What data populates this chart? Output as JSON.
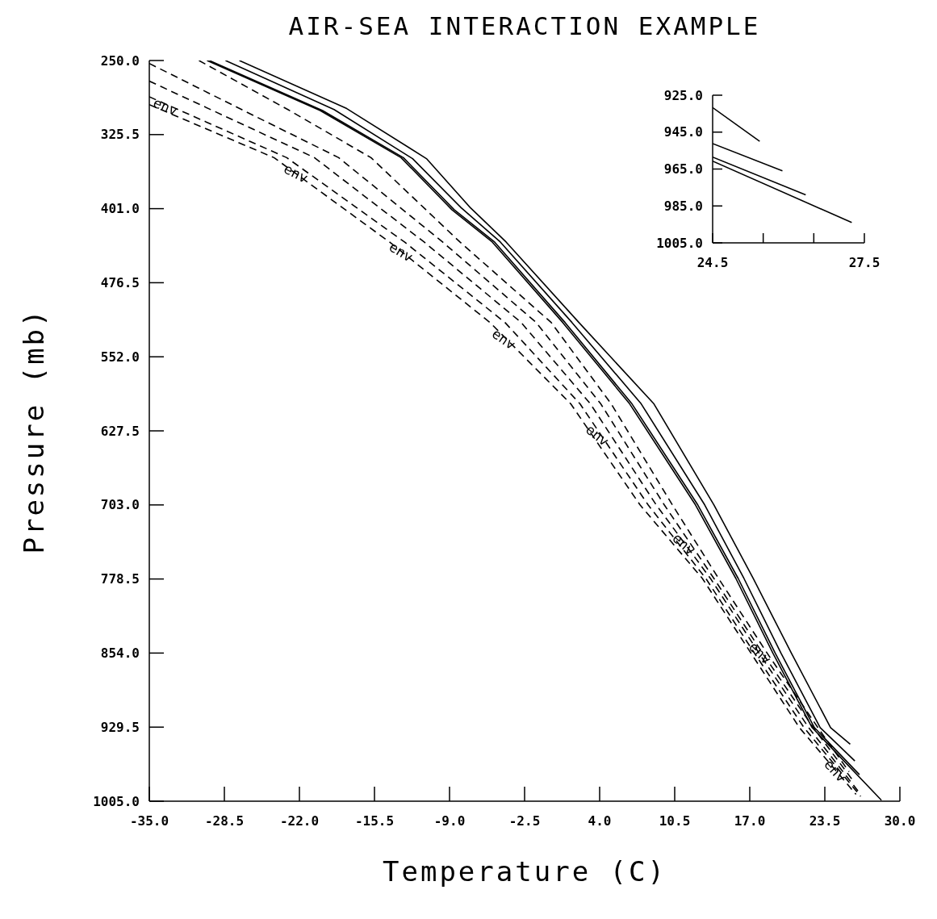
{
  "chart_data": [
    {
      "type": "line",
      "title": "AIR-SEA INTERACTION EXAMPLE",
      "xlabel": "Temperature (C)",
      "ylabel": "Pressure (mb)",
      "xlim": [
        -35,
        30
      ],
      "xticks": [
        {
          "value": -35,
          "label": "-35.0"
        },
        {
          "value": -28.5,
          "label": "-28.5"
        },
        {
          "value": -22,
          "label": "-22.0"
        },
        {
          "value": -15.5,
          "label": "-15.5"
        },
        {
          "value": -9,
          "label": "-9.0"
        },
        {
          "value": -2.5,
          "label": "-2.5"
        },
        {
          "value": 4,
          "label": "4.0"
        },
        {
          "value": 10.5,
          "label": "10.5"
        },
        {
          "value": 17,
          "label": "17.0"
        },
        {
          "value": 23.5,
          "label": "23.5"
        },
        {
          "value": 30,
          "label": "30.0"
        }
      ],
      "ylim": [
        1005,
        250
      ],
      "yticks": [
        {
          "value": 250,
          "label": "250.0"
        },
        {
          "value": 325.5,
          "label": "325.5"
        },
        {
          "value": 401,
          "label": "401.0"
        },
        {
          "value": 476.5,
          "label": "476.5"
        },
        {
          "value": 552,
          "label": "552.0"
        },
        {
          "value": 627.5,
          "label": "627.5"
        },
        {
          "value": 703,
          "label": "703.0"
        },
        {
          "value": 778.5,
          "label": "778.5"
        },
        {
          "value": 854,
          "label": "854.0"
        },
        {
          "value": 929.5,
          "label": "929.5"
        },
        {
          "value": 1005,
          "label": "1005.0"
        }
      ],
      "series": [
        {
          "color": "#000000",
          "line_style": "solid",
          "x": [
            -27.2,
            -17.9,
            -11,
            -7.2,
            -4.1,
            2.2,
            8.7,
            13.9,
            17.3,
            20.6,
            24,
            25.7
          ],
          "values": [
            250,
            299,
            350,
            400,
            435,
            517,
            600,
            703,
            778,
            854,
            930,
            947
          ]
        },
        {
          "color": "#000000",
          "line_style": "solid",
          "x": [
            -28.4,
            -19,
            -12.2,
            -8,
            -4.6,
            1.6,
            7.6,
            13.1,
            16.5,
            19.7,
            23.1,
            26.1
          ],
          "values": [
            250,
            300,
            350,
            400,
            435,
            517,
            600,
            703,
            778,
            854,
            930,
            964
          ]
        },
        {
          "color": "#000000",
          "line_style": "solid",
          "x": [
            -29.8,
            -20,
            -13,
            -8.6,
            -5.1,
            1,
            6.8,
            12.5,
            16,
            19.2,
            22.6,
            26.5
          ],
          "values": [
            250,
            301,
            349,
            402,
            435,
            517,
            600,
            703,
            778,
            854,
            930,
            978
          ]
        },
        {
          "color": "#000000",
          "line_style": "solid",
          "x": [
            -30,
            -20.2,
            -13.2,
            -8.8,
            -5.3,
            0.8,
            6.6,
            12.3,
            15.8,
            19,
            22.4,
            28.4
          ],
          "values": [
            250,
            301,
            349,
            402,
            435,
            517,
            600,
            703,
            778,
            854,
            930,
            1004
          ]
        },
        {
          "color": "#000000",
          "line_style": "dashed",
          "x": [
            -30.7,
            -23,
            -15.8,
            -8.1,
            -0.2,
            5,
            10.3,
            14.3,
            18.5,
            22.9,
            25.6
          ],
          "values": [
            250,
            300,
            349,
            435,
            517,
            600,
            703,
            778,
            854,
            930,
            975
          ]
        },
        {
          "color": "#000000",
          "line_style": "dashed",
          "x": [
            -35,
            -27,
            -18.6,
            -9.6,
            -1.5,
            4.1,
            9.6,
            13.9,
            18.1,
            22.5,
            26
          ],
          "values": [
            253,
            300,
            349,
            435,
            517,
            600,
            703,
            778,
            854,
            930,
            985
          ]
        },
        {
          "color": "#000000",
          "line_style": "dashed",
          "x": [
            -35,
            -20.7,
            -11.2,
            -2.8,
            3.2,
            8.9,
            13.6,
            17.8,
            22.1,
            26.4
          ],
          "values": [
            271,
            349,
            435,
            517,
            600,
            703,
            778,
            854,
            930,
            995
          ]
        },
        {
          "color": "#000000",
          "line_style": "dashed",
          "x": [
            -35,
            -23.1,
            -12.9,
            -4.2,
            2.3,
            8.2,
            13.2,
            17.4,
            21.7,
            26.6
          ],
          "values": [
            287,
            349,
            435,
            517,
            600,
            703,
            778,
            854,
            930,
            1000
          ]
        },
        {
          "color": "#000000",
          "line_style": "dashed",
          "x": [
            -35,
            -24.2,
            -14.2,
            -5.5,
            1.5,
            7.5,
            12.9,
            17.1,
            21.3,
            26.2
          ],
          "values": [
            295,
            349,
            435,
            517,
            600,
            703,
            778,
            854,
            930,
            998
          ]
        }
      ],
      "annotations": [
        {
          "text": "env",
          "x": -33.6,
          "y": 297
        },
        {
          "text": "env",
          "x": -22.3,
          "y": 365
        },
        {
          "text": "env",
          "x": -13.2,
          "y": 445
        },
        {
          "text": "env",
          "x": -4.3,
          "y": 534
        },
        {
          "text": "env",
          "x": 3.8,
          "y": 632
        },
        {
          "text": "env",
          "x": 11.3,
          "y": 743
        },
        {
          "text": "env",
          "x": 17.9,
          "y": 854
        },
        {
          "text": "env",
          "x": 24.4,
          "y": 974
        }
      ]
    },
    {
      "type": "line",
      "xlim": [
        24.5,
        27.5
      ],
      "xticks": [
        24.5,
        {
          "value": 25.5,
          "label": null
        },
        {
          "value": 26.5,
          "label": null
        },
        27.5
      ],
      "ylim": [
        1005,
        925
      ],
      "yticks": [
        {
          "value": 925,
          "label": "925.0"
        },
        {
          "value": 945,
          "label": "945.0"
        },
        {
          "value": 965,
          "label": "965.0"
        },
        {
          "value": 985,
          "label": "985.0"
        },
        {
          "value": 1005,
          "label": "1005.0"
        }
      ],
      "series": [
        {
          "color": "#000000",
          "line_style": "solid",
          "x": [
            24.5,
            25.43
          ],
          "values": [
            931.7,
            950
          ]
        },
        {
          "color": "#000000",
          "line_style": "solid",
          "x": [
            24.5,
            25.88
          ],
          "values": [
            951.2,
            966
          ]
        },
        {
          "color": "#000000",
          "line_style": "solid",
          "x": [
            24.5,
            26.34
          ],
          "values": [
            958.5,
            979
          ]
        },
        {
          "color": "#000000",
          "line_style": "solid",
          "x": [
            24.5,
            27.25
          ],
          "values": [
            960.7,
            994
          ]
        }
      ]
    }
  ]
}
